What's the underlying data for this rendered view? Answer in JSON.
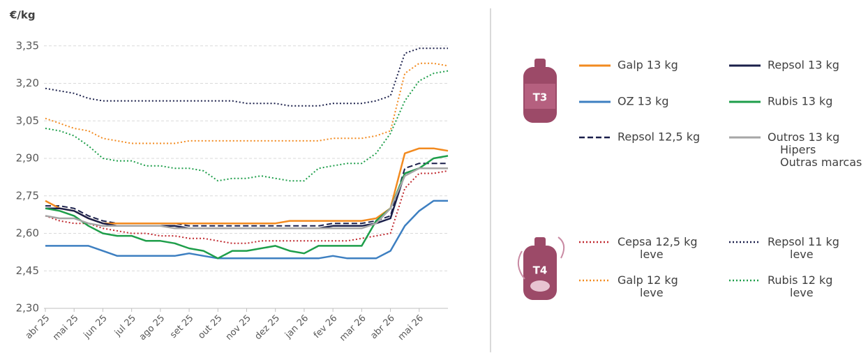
{
  "chart_data": {
    "type": "line",
    "y_label": "€/kg",
    "annotations": [
      "T3",
      "T4"
    ],
    "categories": [
      "abr 25",
      null,
      "mai 25",
      null,
      "jun 25",
      null,
      "jul 25",
      null,
      "ago 25",
      null,
      "set 25",
      null,
      "out 25",
      null,
      "nov 25",
      null,
      "dez 25",
      null,
      "jan 26",
      null,
      "fev 26",
      null,
      "mar 26",
      null,
      "abr 26",
      null,
      "mai 26",
      null,
      null
    ],
    "ylim": [
      2.3,
      3.38
    ],
    "yticks": [
      {
        "value": 2.3,
        "label": "2,30"
      },
      {
        "value": 2.45,
        "label": "2,45"
      },
      {
        "value": 2.6,
        "label": "2,60"
      },
      {
        "value": 2.75,
        "label": "2,75"
      },
      {
        "value": 2.9,
        "label": "2,90"
      },
      {
        "value": 3.05,
        "label": "3,05"
      },
      {
        "value": 3.2,
        "label": "3,20"
      },
      {
        "value": 3.35,
        "label": "3,35"
      }
    ],
    "grid": true,
    "series": [
      {
        "name": "Galp 13 kg",
        "color": "#f28a1f",
        "style": "solid",
        "group": "T3",
        "values": [
          2.73,
          2.7,
          2.69,
          2.66,
          2.64,
          2.64,
          2.64,
          2.64,
          2.64,
          2.64,
          2.64,
          2.64,
          2.64,
          2.64,
          2.64,
          2.64,
          2.64,
          2.65,
          2.65,
          2.65,
          2.65,
          2.65,
          2.65,
          2.66,
          2.7,
          2.92,
          2.94,
          2.94,
          2.93
        ]
      },
      {
        "name": "Repsol 13 kg",
        "color": "#1a1f4a",
        "style": "solid",
        "group": "T3",
        "values": [
          2.7,
          2.7,
          2.69,
          2.66,
          2.64,
          2.63,
          2.63,
          2.63,
          2.63,
          2.63,
          2.62,
          2.62,
          2.62,
          2.62,
          2.62,
          2.62,
          2.62,
          2.62,
          2.62,
          2.62,
          2.63,
          2.63,
          2.63,
          2.64,
          2.66,
          2.84,
          2.86,
          2.86,
          2.86
        ]
      },
      {
        "name": "OZ 13 kg",
        "color": "#3d7fc1",
        "style": "solid",
        "group": "T3",
        "values": [
          2.55,
          2.55,
          2.55,
          2.55,
          2.53,
          2.51,
          2.51,
          2.51,
          2.51,
          2.51,
          2.52,
          2.51,
          2.5,
          2.5,
          2.5,
          2.5,
          2.5,
          2.5,
          2.5,
          2.5,
          2.51,
          2.5,
          2.5,
          2.5,
          2.53,
          2.63,
          2.69,
          2.73,
          2.73
        ]
      },
      {
        "name": "Rubis 13 kg",
        "color": "#1e9e4a",
        "style": "solid",
        "group": "T3",
        "values": [
          2.7,
          2.69,
          2.67,
          2.63,
          2.6,
          2.59,
          2.59,
          2.57,
          2.57,
          2.56,
          2.54,
          2.53,
          2.5,
          2.53,
          2.53,
          2.54,
          2.55,
          2.53,
          2.52,
          2.55,
          2.55,
          2.55,
          2.55,
          2.65,
          2.7,
          2.84,
          2.86,
          2.9,
          2.91
        ]
      },
      {
        "name": "Repsol 12,5 kg",
        "color": "#1a1f4a",
        "style": "dashed",
        "group": "T3",
        "values": [
          2.71,
          2.71,
          2.7,
          2.67,
          2.65,
          2.64,
          2.64,
          2.64,
          2.64,
          2.64,
          2.63,
          2.63,
          2.63,
          2.63,
          2.63,
          2.63,
          2.63,
          2.63,
          2.63,
          2.63,
          2.64,
          2.64,
          2.64,
          2.65,
          2.67,
          2.86,
          2.88,
          2.88,
          2.88
        ]
      },
      {
        "name": "Outros 13 kg\nHipers\nOutras marcas",
        "color": "#a6a6a6",
        "style": "solid",
        "group": "T3",
        "values": [
          2.67,
          2.66,
          2.66,
          2.64,
          2.63,
          2.63,
          2.63,
          2.63,
          2.63,
          2.62,
          2.62,
          2.62,
          2.62,
          2.62,
          2.62,
          2.62,
          2.62,
          2.62,
          2.62,
          2.62,
          2.62,
          2.62,
          2.62,
          2.64,
          2.7,
          2.83,
          2.86,
          2.86,
          2.86
        ]
      },
      {
        "name": "Cepsa 12,5 kg\nleve",
        "color": "#c0282e",
        "style": "dotted",
        "group": "T4",
        "values": [
          2.67,
          2.65,
          2.64,
          2.64,
          2.62,
          2.61,
          2.6,
          2.6,
          2.59,
          2.59,
          2.58,
          2.58,
          2.57,
          2.56,
          2.56,
          2.57,
          2.57,
          2.57,
          2.57,
          2.57,
          2.57,
          2.57,
          2.58,
          2.59,
          2.6,
          2.78,
          2.84,
          2.84,
          2.85
        ]
      },
      {
        "name": "Repsol 11 kg\nleve",
        "color": "#1a1f4a",
        "style": "dotted",
        "group": "T4",
        "values": [
          3.18,
          3.17,
          3.16,
          3.14,
          3.13,
          3.13,
          3.13,
          3.13,
          3.13,
          3.13,
          3.13,
          3.13,
          3.13,
          3.13,
          3.12,
          3.12,
          3.12,
          3.11,
          3.11,
          3.11,
          3.12,
          3.12,
          3.12,
          3.13,
          3.15,
          3.32,
          3.34,
          3.34,
          3.34
        ]
      },
      {
        "name": "Galp 12 kg\nleve",
        "color": "#f28a1f",
        "style": "dotted",
        "group": "T4",
        "values": [
          3.06,
          3.04,
          3.02,
          3.01,
          2.98,
          2.97,
          2.96,
          2.96,
          2.96,
          2.96,
          2.97,
          2.97,
          2.97,
          2.97,
          2.97,
          2.97,
          2.97,
          2.97,
          2.97,
          2.97,
          2.98,
          2.98,
          2.98,
          2.99,
          3.01,
          3.24,
          3.28,
          3.28,
          3.27
        ]
      },
      {
        "name": "Rubis 12 kg\nleve",
        "color": "#1e9e4a",
        "style": "dotted",
        "group": "T4",
        "values": [
          3.02,
          3.01,
          2.99,
          2.95,
          2.9,
          2.89,
          2.89,
          2.87,
          2.87,
          2.86,
          2.86,
          2.85,
          2.81,
          2.82,
          2.82,
          2.83,
          2.82,
          2.81,
          2.81,
          2.86,
          2.87,
          2.88,
          2.88,
          2.92,
          3.0,
          3.13,
          3.21,
          3.24,
          3.25
        ]
      }
    ]
  }
}
